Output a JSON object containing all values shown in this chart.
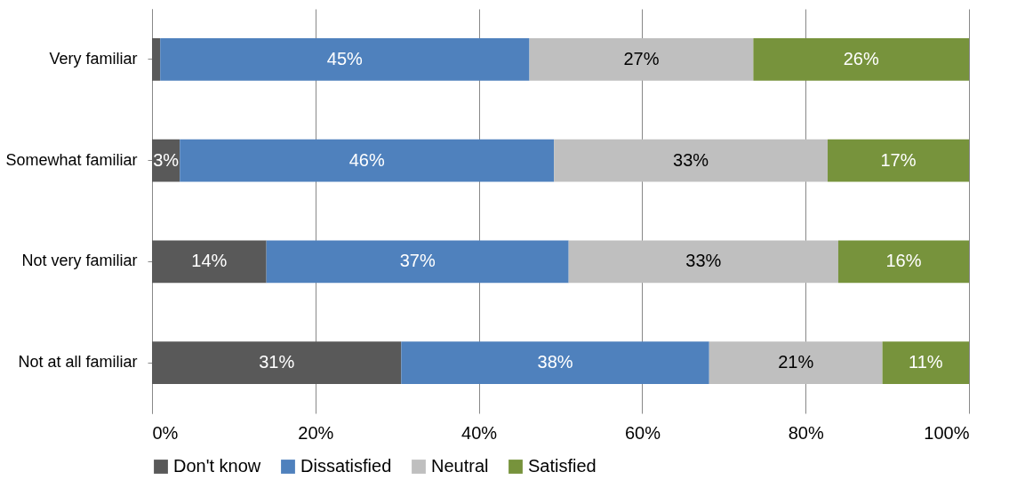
{
  "chart_data": {
    "type": "bar",
    "orientation": "horizontal",
    "stacked": true,
    "categories": [
      "Very familiar",
      "Somewhat familiar",
      "Not very familiar",
      "Not at all familiar"
    ],
    "series": [
      {
        "name": "Don't know",
        "color": "#595959",
        "values": [
          1.0,
          3.4,
          14.0,
          30.5
        ],
        "value_labels": [
          null,
          "3%",
          "14%",
          "31%"
        ]
      },
      {
        "name": "Dissatisfied",
        "color": "#4f81bd",
        "values": [
          45.2,
          45.8,
          37.0,
          37.7
        ],
        "value_labels": [
          "45%",
          "46%",
          "37%",
          "38%"
        ]
      },
      {
        "name": "Neutral",
        "color": "#bfbfbf",
        "values": [
          27.4,
          33.5,
          33.0,
          21.2
        ],
        "value_labels": [
          "27%",
          "33%",
          "33%",
          "21%"
        ]
      },
      {
        "name": "Satisfied",
        "color": "#77933c",
        "values": [
          26.4,
          17.3,
          16.0,
          10.6
        ],
        "value_labels": [
          "26%",
          "17%",
          "16%",
          "11%"
        ]
      }
    ],
    "xlim": [
      0,
      100
    ],
    "xticks": [
      {
        "value": 0,
        "label": "0%"
      },
      {
        "value": 20,
        "label": "20%"
      },
      {
        "value": 40,
        "label": "40%"
      },
      {
        "value": 60,
        "label": "60%"
      },
      {
        "value": 80,
        "label": "80%"
      },
      {
        "value": 100,
        "label": "100%"
      }
    ],
    "grid": "x",
    "legend": "bottom"
  }
}
